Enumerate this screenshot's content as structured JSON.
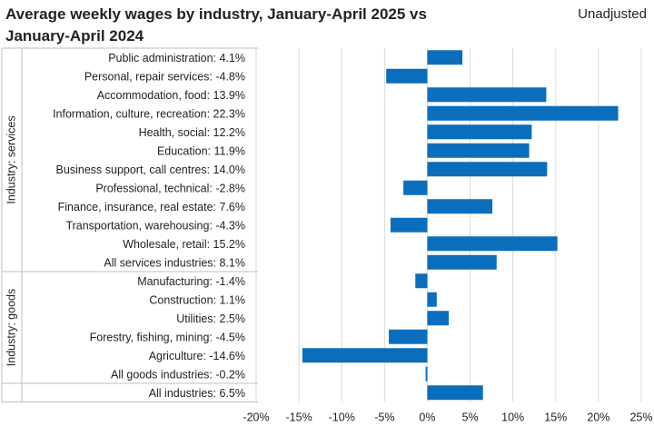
{
  "title": "Average weekly wages by industry, January-April 2025 vs January-April 2024",
  "subtitle": "Unadjusted",
  "colors": {
    "bar": "#0a6ebd",
    "grid": "#d9d9d9",
    "frame": "#bfbfbf"
  },
  "chart_data": {
    "type": "bar",
    "orientation": "horizontal",
    "title": "Average weekly wages by industry, January-April 2025 vs January-April 2024",
    "xlabel": "",
    "ylabel": "",
    "xlim": [
      -20,
      25
    ],
    "xticks": [
      -20,
      -15,
      -10,
      -5,
      0,
      5,
      10,
      15,
      20,
      25
    ],
    "tick_suffix": "%",
    "groups": [
      {
        "label": "Industry: services",
        "start": 0,
        "end": 11
      },
      {
        "label": "Industry: goods",
        "start": 12,
        "end": 17
      },
      {
        "label": "",
        "start": 18,
        "end": 18
      }
    ],
    "categories": [
      "Public administration",
      "Personal, repair services",
      "Accommodation, food",
      "Information, culture, recreation",
      "Health, social",
      "Education",
      "Business support, call centres",
      "Professional, technical",
      "Finance, insurance, real estate",
      "Transportation, warehousing",
      "Wholesale, retail",
      "All services industries",
      "Manufacturing",
      "Construction",
      "Utilities",
      "Forestry, fishing, mining",
      "Agriculture",
      "All goods industries",
      "All industries"
    ],
    "values": [
      4.1,
      -4.8,
      13.9,
      22.3,
      12.2,
      11.9,
      14.0,
      -2.8,
      7.6,
      -4.3,
      15.2,
      8.1,
      -1.4,
      1.1,
      2.5,
      -4.5,
      -14.6,
      -0.2,
      6.5
    ],
    "value_labels": [
      "4.1%",
      "-4.8%",
      "13.9%",
      "22.3%",
      "12.2%",
      "11.9%",
      "14.0%",
      "-2.8%",
      "7.6%",
      "-4.3%",
      "15.2%",
      "8.1%",
      "-1.4%",
      "1.1%",
      "2.5%",
      "-4.5%",
      "-14.6%",
      "-0.2%",
      "6.5%"
    ]
  }
}
